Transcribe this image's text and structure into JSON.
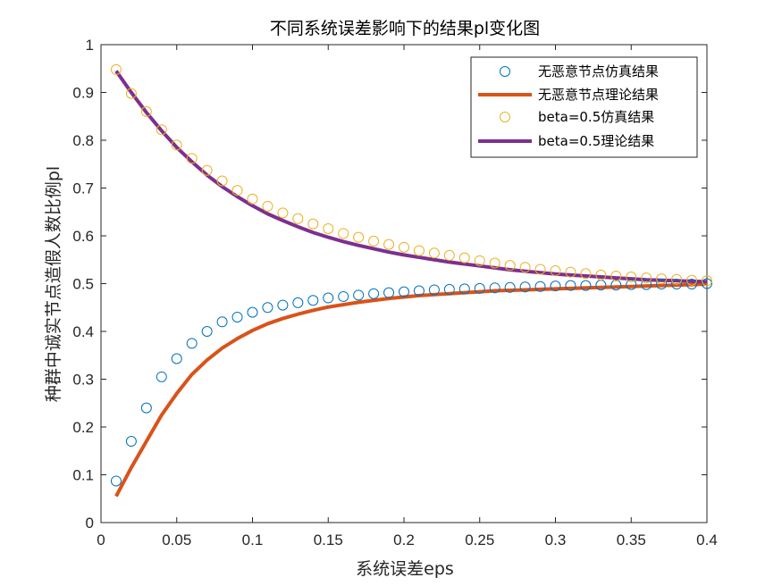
{
  "chart_data": {
    "type": "line",
    "title": "不同系统误差影响下的结果pl变化图",
    "xlabel": "系统误差eps",
    "ylabel": "种群中诚实节点造假人数比例pl",
    "xlim": [
      0,
      0.4
    ],
    "ylim": [
      0,
      1
    ],
    "xticks": [
      0,
      0.05,
      0.1,
      0.15,
      0.2,
      0.25,
      0.3,
      0.35,
      0.4
    ],
    "xtick_labels": [
      "0",
      "0.05",
      "0.1",
      "0.15",
      "0.2",
      "0.25",
      "0.3",
      "0.35",
      "0.4"
    ],
    "yticks": [
      0,
      0.1,
      0.2,
      0.3,
      0.4,
      0.5,
      0.6,
      0.7,
      0.8,
      0.9,
      1
    ],
    "ytick_labels": [
      "0",
      "0.1",
      "0.2",
      "0.3",
      "0.4",
      "0.5",
      "0.6",
      "0.7",
      "0.8",
      "0.9",
      "1"
    ],
    "grid": false,
    "legend_position": "top-right",
    "x": [
      0.01,
      0.02,
      0.03,
      0.04,
      0.05,
      0.06,
      0.07,
      0.08,
      0.09,
      0.1,
      0.11,
      0.12,
      0.13,
      0.14,
      0.15,
      0.16,
      0.17,
      0.18,
      0.19,
      0.2,
      0.21,
      0.22,
      0.23,
      0.24,
      0.25,
      0.26,
      0.27,
      0.28,
      0.29,
      0.3,
      0.31,
      0.32,
      0.33,
      0.34,
      0.35,
      0.36,
      0.37,
      0.38,
      0.39,
      0.4
    ],
    "series": [
      {
        "name": "无恶意节点仿真结果",
        "style": "marker",
        "color": "#0072BD",
        "values": [
          0.087,
          0.17,
          0.24,
          0.305,
          0.343,
          0.375,
          0.4,
          0.42,
          0.43,
          0.44,
          0.45,
          0.455,
          0.46,
          0.465,
          0.47,
          0.473,
          0.476,
          0.479,
          0.481,
          0.483,
          0.485,
          0.487,
          0.488,
          0.489,
          0.49,
          0.491,
          0.492,
          0.493,
          0.494,
          0.495,
          0.496,
          0.496,
          0.497,
          0.497,
          0.498,
          0.498,
          0.499,
          0.499,
          0.499,
          0.5
        ]
      },
      {
        "name": "无恶意节点理论结果",
        "style": "line",
        "color": "#D95319",
        "values": [
          0.055,
          0.115,
          0.17,
          0.225,
          0.27,
          0.31,
          0.34,
          0.365,
          0.385,
          0.402,
          0.416,
          0.427,
          0.436,
          0.444,
          0.451,
          0.456,
          0.461,
          0.465,
          0.469,
          0.472,
          0.475,
          0.477,
          0.479,
          0.481,
          0.483,
          0.485,
          0.486,
          0.487,
          0.488,
          0.489,
          0.49,
          0.491,
          0.492,
          0.493,
          0.494,
          0.495,
          0.496,
          0.497,
          0.498,
          0.499
        ]
      },
      {
        "name": "beta=0.5仿真结果",
        "style": "marker",
        "color": "#EDB120",
        "values": [
          0.948,
          0.898,
          0.86,
          0.822,
          0.79,
          0.762,
          0.737,
          0.715,
          0.695,
          0.677,
          0.662,
          0.648,
          0.636,
          0.625,
          0.615,
          0.605,
          0.597,
          0.589,
          0.582,
          0.576,
          0.569,
          0.564,
          0.559,
          0.554,
          0.548,
          0.543,
          0.538,
          0.534,
          0.53,
          0.527,
          0.524,
          0.521,
          0.518,
          0.516,
          0.514,
          0.512,
          0.51,
          0.509,
          0.507,
          0.506
        ]
      },
      {
        "name": "beta=0.5理论结果",
        "style": "line",
        "color": "#7E2F8E",
        "values": [
          0.945,
          0.9,
          0.858,
          0.82,
          0.785,
          0.755,
          0.727,
          0.703,
          0.682,
          0.663,
          0.646,
          0.632,
          0.619,
          0.607,
          0.597,
          0.588,
          0.58,
          0.573,
          0.566,
          0.56,
          0.555,
          0.55,
          0.545,
          0.541,
          0.537,
          0.533,
          0.529,
          0.526,
          0.523,
          0.52,
          0.518,
          0.516,
          0.514,
          0.512,
          0.51,
          0.508,
          0.507,
          0.506,
          0.505,
          0.504
        ]
      }
    ]
  }
}
